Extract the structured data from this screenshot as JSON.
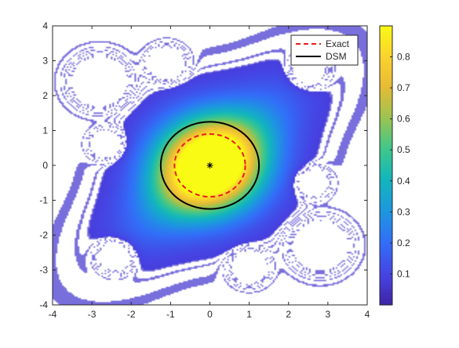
{
  "chart_data": {
    "type": "heatmap",
    "title": "",
    "xlabel": "",
    "ylabel": "",
    "xlim": [
      -4,
      4
    ],
    "ylim": [
      -4,
      4
    ],
    "x_ticks": [
      -4,
      -3,
      -2,
      -1,
      0,
      1,
      2,
      3,
      4
    ],
    "y_ticks": [
      -4,
      -3,
      -2,
      -1,
      0,
      1,
      2,
      3,
      4
    ],
    "x_tick_labels": [
      "-4",
      "-3",
      "-2",
      "-1",
      "0",
      "1",
      "2",
      "3",
      "4"
    ],
    "y_tick_labels": [
      "-4",
      "-3",
      "-2",
      "-1",
      "0",
      "1",
      "2",
      "3",
      "4"
    ],
    "colormap": "parula",
    "colorbar": {
      "range": [
        0,
        0.9
      ],
      "ticks": [
        0.1,
        0.2,
        0.3,
        0.4,
        0.5,
        0.6,
        0.7,
        0.8
      ],
      "tick_labels": [
        "0.1",
        "0.2",
        "0.3",
        "0.4",
        "0.5",
        "0.6",
        "0.7",
        "0.8"
      ]
    },
    "grid": false,
    "legend": {
      "placement": "top-right"
    },
    "series": [
      {
        "name": "Exact",
        "shape": "circle",
        "center": [
          0,
          0
        ],
        "radius": 0.9,
        "color": "#e81d1d",
        "line_style": "dashed"
      },
      {
        "name": "DSM",
        "shape": "circle",
        "center": [
          0,
          0
        ],
        "radius": 1.25,
        "color": "#000000",
        "line_style": "solid"
      }
    ],
    "marker": {
      "x": 0,
      "y": 0,
      "symbol": "*"
    }
  }
}
